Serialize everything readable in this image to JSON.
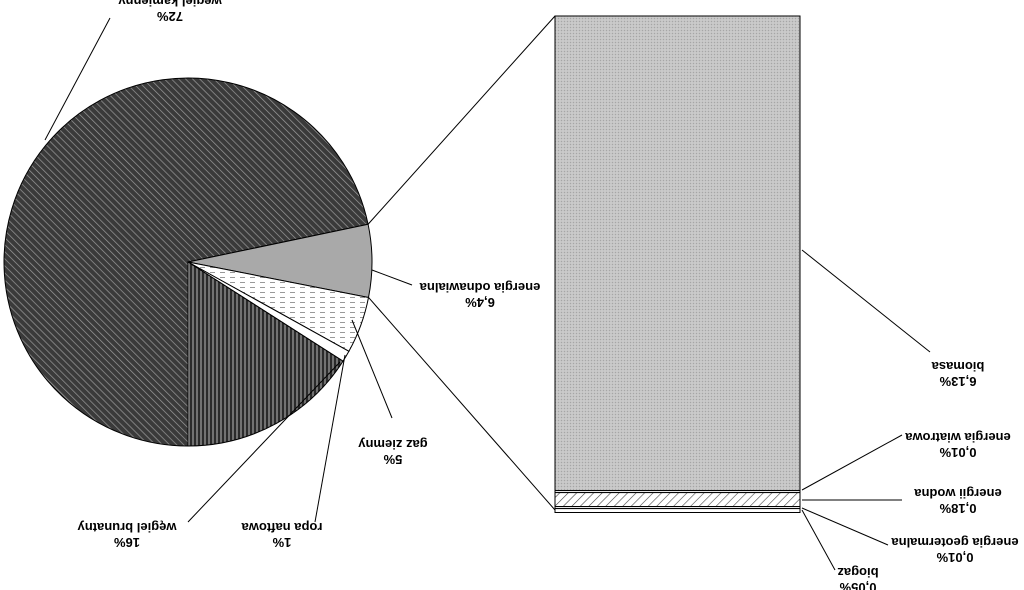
{
  "chart_data": [
    {
      "type": "pie",
      "mirrored": true,
      "slices": [
        {
          "label": "węgiel kamienny",
          "value_label": "72%",
          "value": 72,
          "pattern": "dark-diagonal-hatch"
        },
        {
          "label": "energia odnawialna",
          "value_label": "6,4%",
          "value": 6.4,
          "pattern": "grey-fill",
          "exploded_into_bar": true
        },
        {
          "label": "gaz ziemny",
          "value_label": "5%",
          "value": 5,
          "pattern": "light-dashed-hatch"
        },
        {
          "label": "ropa naftowa",
          "value_label": "1%",
          "value": 1,
          "pattern": "white-fill"
        },
        {
          "label": "węgiel brunatny",
          "value_label": "16%",
          "value": 16,
          "pattern": "vertical-stripe-hatch"
        }
      ]
    },
    {
      "type": "bar",
      "stacked": true,
      "description_of": "energia odnawialna breakdown",
      "segments": [
        {
          "label": "biomasa",
          "value_label": "6,13%",
          "value": 6.13,
          "pattern": "grey-dotted"
        },
        {
          "label": "energia wiatrowa",
          "value_label": "0,01%",
          "value": 0.01,
          "pattern": "white-fill"
        },
        {
          "label": "energii wodna",
          "value_label": "0,18%",
          "value": 0.18,
          "pattern": "diagonal-hatch"
        },
        {
          "label": "energia geotermalna",
          "value_label": "0,01%",
          "value": 0.01,
          "pattern": "white-fill"
        },
        {
          "label": "biogaz",
          "value_label": "0,05%",
          "value": 0.05,
          "pattern": "white-fill"
        }
      ]
    }
  ]
}
